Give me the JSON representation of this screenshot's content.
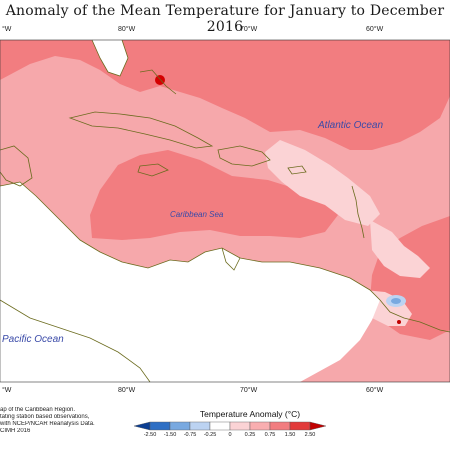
{
  "title": "Anomaly of the Mean Temperature for January to December 2016",
  "longitude_labels": {
    "top": [
      "°W",
      "80°W",
      "70°W",
      "60°W"
    ],
    "bottom": [
      "°W",
      "80°W",
      "70°W",
      "60°W"
    ]
  },
  "ocean_labels": {
    "atlantic": "Atlantic Ocean",
    "caribbean": "Caribbean Sea",
    "pacific": "Pacific Ocean"
  },
  "legend": {
    "title": "Temperature Anomaly (°C)",
    "labels": [
      "-2.50",
      "-1.50",
      "-0.75",
      "-0.25",
      "0",
      "0.25",
      "0.75",
      "1.50",
      "2.50"
    ],
    "colors": [
      "#0b3d91",
      "#2e6fc4",
      "#79a9e0",
      "#bcd3f2",
      "#ffffff",
      "#fbd3d5",
      "#f9aeb0",
      "#f27d80",
      "#e23b3b",
      "#c00000"
    ]
  },
  "credit_lines": [
    "ap of the Caribbean Region.",
    "tating station based observations,",
    "with NCEP/NCAR Reanalysis Data.",
    "CIMH 2016"
  ],
  "colors": {
    "anomaly_light": "#fbd3d5",
    "anomaly_medium": "#f6a8ab",
    "anomaly_strong": "#f27d80",
    "anomaly_hot": "#d40000",
    "anomaly_cold": "#79a9e0",
    "land_outline": "#6b6b1e"
  }
}
